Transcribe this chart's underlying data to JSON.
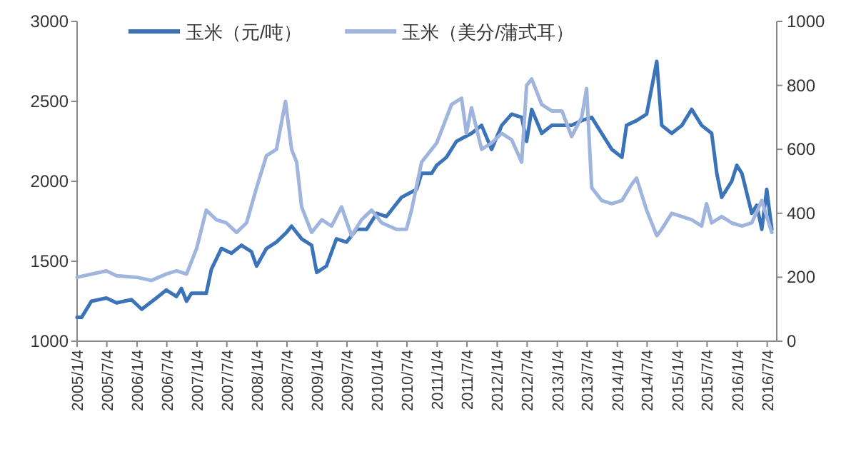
{
  "chart_data": {
    "type": "line",
    "legend": "top",
    "line_style": "solid",
    "xlim": [
      "2005-01-04",
      "2016-08-31"
    ],
    "ylim": [
      1000,
      3000
    ],
    "yticks": [
      1000,
      1500,
      2000,
      2500,
      3000
    ],
    "y2lim": [
      0,
      1000
    ],
    "y2ticks": [
      0,
      200,
      400,
      600,
      800,
      1000
    ],
    "xticks": [
      {
        "value": "2005-01-04",
        "label": "2005/1/4"
      },
      {
        "value": "2005-07-04",
        "label": "2005/7/4"
      },
      {
        "value": "2006-01-04",
        "label": "2006/1/4"
      },
      {
        "value": "2006-07-04",
        "label": "2006/7/4"
      },
      {
        "value": "2007-01-04",
        "label": "2007/1/4"
      },
      {
        "value": "2007-07-04",
        "label": "2007/7/4"
      },
      {
        "value": "2008-01-04",
        "label": "2008/1/4"
      },
      {
        "value": "2008-07-04",
        "label": "2008/7/4"
      },
      {
        "value": "2009-01-04",
        "label": "2009/1/4"
      },
      {
        "value": "2009-07-04",
        "label": "2009/7/4"
      },
      {
        "value": "2010-01-04",
        "label": "2010/1/4"
      },
      {
        "value": "2010-07-04",
        "label": "2010/7/4"
      },
      {
        "value": "2011-01-04",
        "label": "2011/1/4"
      },
      {
        "value": "2011-07-04",
        "label": "2011/7/4"
      },
      {
        "value": "2012-01-04",
        "label": "2012/1/4"
      },
      {
        "value": "2012-07-04",
        "label": "2012/7/4"
      },
      {
        "value": "2013-01-04",
        "label": "2013/1/4"
      },
      {
        "value": "2013-07-04",
        "label": "2013/7/4"
      },
      {
        "value": "2014-01-04",
        "label": "2014/1/4"
      },
      {
        "value": "2014-07-04",
        "label": "2014/7/4"
      },
      {
        "value": "2015-01-04",
        "label": "2015/1/4"
      },
      {
        "value": "2015-07-04",
        "label": "2015/7/4"
      },
      {
        "value": "2016-01-04",
        "label": "2016/1/4"
      },
      {
        "value": "2016-07-04",
        "label": "2016/7/4"
      }
    ],
    "series": [
      {
        "name": "玉米（元/吨）",
        "color": "#3b73b9",
        "x": [
          "2005-01-04",
          "2005-02",
          "2005-04",
          "2005-07",
          "2005-09",
          "2005-12",
          "2006-02",
          "2006-05",
          "2006-07",
          "2006-09",
          "2006-10",
          "2006-11",
          "2006-12",
          "2007-03",
          "2007-04",
          "2007-06",
          "2007-08",
          "2007-10",
          "2007-12",
          "2008-01",
          "2008-03",
          "2008-05",
          "2008-07",
          "2008-08",
          "2008-10",
          "2008-12",
          "2009-01",
          "2009-03",
          "2009-05",
          "2009-07",
          "2009-09",
          "2009-11",
          "2010-01",
          "2010-03",
          "2010-06",
          "2010-09",
          "2010-10",
          "2010-12",
          "2011-01",
          "2011-03",
          "2011-05",
          "2011-08",
          "2011-10",
          "2011-12",
          "2012-02",
          "2012-04",
          "2012-06",
          "2012-07",
          "2012-08",
          "2012-10",
          "2012-12",
          "2013-02",
          "2013-04",
          "2013-06",
          "2013-08",
          "2013-10",
          "2013-12",
          "2014-02",
          "2014-03",
          "2014-05",
          "2014-07",
          "2014-09",
          "2014-10",
          "2014-12",
          "2015-02",
          "2015-04",
          "2015-06",
          "2015-08",
          "2015-09",
          "2015-10",
          "2015-12",
          "2016-01",
          "2016-02",
          "2016-04",
          "2016-05",
          "2016-06",
          "2016-07",
          "2016-08"
        ],
        "values": [
          1150,
          1150,
          1250,
          1270,
          1240,
          1260,
          1200,
          1270,
          1320,
          1280,
          1330,
          1250,
          1300,
          1300,
          1450,
          1580,
          1550,
          1600,
          1560,
          1470,
          1580,
          1620,
          1680,
          1720,
          1640,
          1600,
          1430,
          1470,
          1640,
          1620,
          1700,
          1700,
          1800,
          1780,
          1900,
          1950,
          2050,
          2050,
          2100,
          2150,
          2250,
          2300,
          2350,
          2200,
          2350,
          2420,
          2400,
          2250,
          2450,
          2300,
          2350,
          2350,
          2350,
          2380,
          2400,
          2300,
          2200,
          2150,
          2350,
          2380,
          2420,
          2750,
          2350,
          2300,
          2350,
          2450,
          2350,
          2300,
          2050,
          1900,
          2000,
          2100,
          2050,
          1800,
          1850,
          1700,
          1950,
          1700
        ]
      },
      {
        "name": "玉米（美分/蒲式耳）",
        "color": "#9fb5de",
        "axis": "y2",
        "x": [
          "2005-01-04",
          "2005-07",
          "2005-09",
          "2006-01",
          "2006-04",
          "2006-07",
          "2006-09",
          "2006-11",
          "2007-01",
          "2007-03",
          "2007-05",
          "2007-07",
          "2007-09",
          "2007-11",
          "2008-01",
          "2008-03",
          "2008-05",
          "2008-06-25",
          "2008-08",
          "2008-09",
          "2008-10",
          "2008-12",
          "2009-02",
          "2009-04",
          "2009-06",
          "2009-08",
          "2009-10",
          "2009-12",
          "2010-02",
          "2010-05",
          "2010-07",
          "2010-08",
          "2010-10",
          "2011-01",
          "2011-04",
          "2011-06",
          "2011-07",
          "2011-08",
          "2011-10",
          "2011-12",
          "2012-02",
          "2012-04",
          "2012-06",
          "2012-07",
          "2012-08",
          "2012-10",
          "2012-12",
          "2013-02",
          "2013-04",
          "2013-06",
          "2013-07",
          "2013-08",
          "2013-10",
          "2013-12",
          "2014-02",
          "2014-04",
          "2014-05",
          "2014-07",
          "2014-09",
          "2014-10",
          "2014-12",
          "2015-02",
          "2015-04",
          "2015-06",
          "2015-07",
          "2015-08",
          "2015-10",
          "2015-12",
          "2016-02",
          "2016-04",
          "2016-06",
          "2016-07",
          "2016-08"
        ],
        "values": [
          200,
          220,
          205,
          200,
          190,
          210,
          220,
          210,
          290,
          410,
          380,
          370,
          340,
          370,
          480,
          580,
          600,
          750,
          600,
          560,
          420,
          340,
          380,
          360,
          420,
          330,
          380,
          410,
          370,
          350,
          350,
          410,
          560,
          620,
          740,
          760,
          650,
          730,
          600,
          620,
          650,
          630,
          560,
          800,
          820,
          740,
          720,
          720,
          640,
          700,
          790,
          480,
          440,
          430,
          440,
          490,
          510,
          410,
          330,
          350,
          400,
          390,
          380,
          360,
          430,
          370,
          390,
          370,
          360,
          370,
          440,
          390,
          340
        ]
      }
    ]
  }
}
